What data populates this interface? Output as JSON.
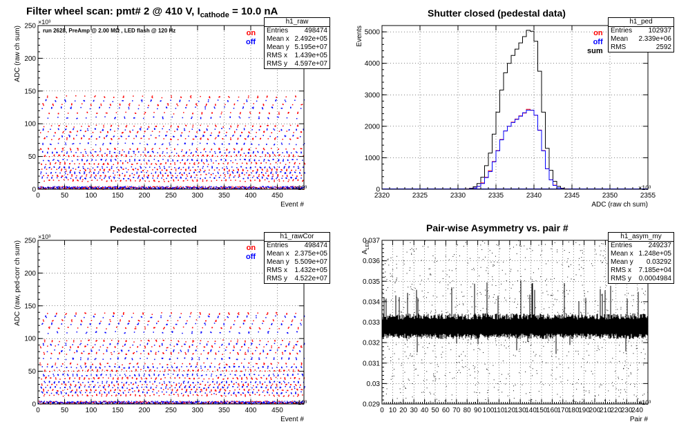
{
  "page_title": {
    "prefix": "Filter wheel scan: pmt#   2 @   410 V, I",
    "subscript": "cathode",
    "suffix": " = 10.0 nA"
  },
  "chart_data": [
    {
      "id": "raw",
      "type": "scatter",
      "title": "",
      "xlabel": "Event #",
      "ylabel": "ADC (raw ch sum)",
      "x_exponent": "×10³",
      "y_exponent": "×10³",
      "xlim": [
        0,
        500
      ],
      "ylim": [
        0,
        250
      ],
      "xticks": [
        0,
        50,
        100,
        150,
        200,
        250,
        300,
        350,
        400,
        450
      ],
      "yticks": [
        0,
        50,
        100,
        150,
        200,
        250
      ],
      "grid": true,
      "annotation": "run 2628, PreAmp @ 2.00 MΩ , LED flash @  120 Hz",
      "legend": [
        {
          "label": "on",
          "color": "#ff0000"
        },
        {
          "label": "off",
          "color": "#0000ff"
        }
      ],
      "stats": {
        "name": "h1_raw",
        "rows": [
          [
            "Entries",
            "498474"
          ],
          [
            "Mean x",
            "2.492e+05"
          ],
          [
            "Mean y",
            "5.195e+07"
          ],
          [
            "RMS x",
            "1.439e+05"
          ],
          [
            "RMS y",
            "4.597e+07"
          ]
        ]
      },
      "series": [
        {
          "name": "on",
          "color": "#ff0000",
          "levels": [
            2,
            14,
            22,
            30,
            40,
            52,
            62,
            78,
            88,
            97,
            117,
            130,
            142
          ]
        },
        {
          "name": "off",
          "color": "#0000ff",
          "levels": [
            3,
            18,
            26,
            34,
            45,
            57,
            70,
            82,
            92,
            110,
            125,
            136
          ]
        }
      ]
    },
    {
      "id": "ped",
      "type": "bar",
      "title": "Shutter closed (pedestal data)",
      "xlabel": "ADC (raw ch sum)",
      "ylabel": "Events",
      "x_exponent": "×10³",
      "xlim": [
        2320,
        2355
      ],
      "ylim": [
        0,
        5200
      ],
      "xticks": [
        2320,
        2325,
        2330,
        2335,
        2340,
        2345,
        2350,
        2355
      ],
      "yticks": [
        0,
        1000,
        2000,
        3000,
        4000,
        5000
      ],
      "grid": true,
      "legend": [
        {
          "label": "on",
          "color": "#ff0000"
        },
        {
          "label": "off",
          "color": "#0000ff"
        },
        {
          "label": "sum",
          "color": "#000000"
        }
      ],
      "stats": {
        "name": "h1_ped",
        "rows": [
          [
            "Entries",
            "102937"
          ],
          [
            "Mean",
            "2.339e+06"
          ],
          [
            "RMS",
            "2592"
          ]
        ]
      },
      "bin_width": 0.5,
      "bin_start": 2331,
      "series": [
        {
          "name": "sum",
          "color": "#000000",
          "values": [
            10,
            30,
            80,
            180,
            380,
            750,
            1150,
            1750,
            2450,
            3150,
            3700,
            4000,
            4250,
            4450,
            4650,
            4850,
            5050,
            5020,
            4700,
            3750,
            2450,
            1300,
            600,
            250,
            90,
            30,
            10,
            0
          ]
        },
        {
          "name": "on",
          "color": "#ff0000",
          "values": [
            5,
            15,
            40,
            90,
            200,
            380,
            590,
            880,
            1230,
            1580,
            1850,
            2000,
            2130,
            2230,
            2330,
            2420,
            2540,
            2510,
            2350,
            1880,
            1230,
            650,
            300,
            130,
            45,
            15,
            5,
            0
          ]
        },
        {
          "name": "off",
          "color": "#0000ff",
          "values": [
            5,
            15,
            40,
            90,
            180,
            370,
            560,
            870,
            1220,
            1570,
            1850,
            2000,
            2120,
            2220,
            2320,
            2430,
            2510,
            2510,
            2350,
            1870,
            1220,
            650,
            300,
            120,
            45,
            15,
            5,
            0
          ]
        }
      ]
    },
    {
      "id": "rawCor",
      "type": "scatter",
      "title": "Pedestal-corrected",
      "xlabel": "Event #",
      "ylabel": "ADC (raw, ped-corr ch sum)",
      "x_exponent": "×10³",
      "y_exponent": "×10³",
      "xlim": [
        0,
        500
      ],
      "ylim": [
        0,
        250
      ],
      "xticks": [
        0,
        50,
        100,
        150,
        200,
        250,
        300,
        350,
        400,
        450
      ],
      "yticks": [
        0,
        50,
        100,
        150,
        200,
        250
      ],
      "grid": true,
      "legend": [
        {
          "label": "on",
          "color": "#ff0000"
        },
        {
          "label": "off",
          "color": "#0000ff"
        }
      ],
      "stats": {
        "name": "h1_rawCor",
        "rows": [
          [
            "Entries",
            "498474"
          ],
          [
            "Mean x",
            "2.375e+05"
          ],
          [
            "Mean y",
            "5.509e+07"
          ],
          [
            "RMS x",
            "1.432e+05"
          ],
          [
            "RMS y",
            "4.522e+07"
          ]
        ]
      },
      "series": [
        {
          "name": "on",
          "color": "#ff0000",
          "levels": [
            2,
            14,
            22,
            30,
            40,
            52,
            62,
            78,
            88,
            97,
            117,
            128,
            139
          ]
        },
        {
          "name": "off",
          "color": "#0000ff",
          "levels": [
            3,
            18,
            26,
            34,
            45,
            57,
            70,
            82,
            92,
            110,
            123,
            134
          ]
        }
      ]
    },
    {
      "id": "asym",
      "type": "scatter",
      "title": "Pair-wise Asymmetry vs. pair #",
      "xlabel": "Pair #",
      "ylabel": "A_LED",
      "x_exponent": "×10³",
      "xlim": [
        0,
        250
      ],
      "ylim": [
        0.029,
        0.037
      ],
      "xticks": [
        0,
        10,
        20,
        30,
        40,
        50,
        60,
        70,
        80,
        90,
        100,
        110,
        120,
        130,
        140,
        150,
        160,
        170,
        180,
        190,
        200,
        210,
        220,
        230,
        240
      ],
      "yticks": [
        0.029,
        0.03,
        0.031,
        0.032,
        0.033,
        0.034,
        0.035,
        0.036,
        0.037
      ],
      "grid": true,
      "stats": {
        "name": "h1_asym_my",
        "rows": [
          [
            "Entries",
            "249237"
          ],
          [
            "Mean x",
            "1.248e+05"
          ],
          [
            "Mean y",
            "0.03292"
          ],
          [
            "RMS x",
            "7.185e+04"
          ],
          [
            "RMS y",
            "0.0004984"
          ]
        ]
      },
      "series": [
        {
          "name": "",
          "color": "#000000",
          "center": 0.0328,
          "spread": 0.0006
        }
      ]
    }
  ]
}
